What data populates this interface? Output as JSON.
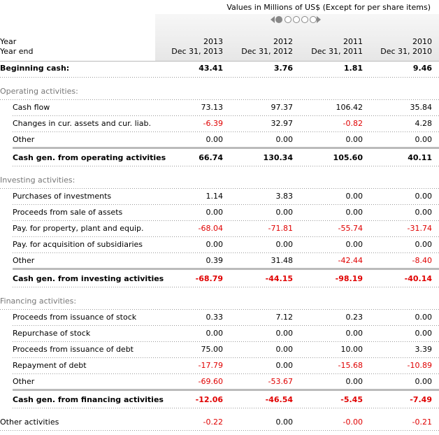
{
  "header": {
    "note": "Values in Millions of US$ (Except for per share items)",
    "label_1": "Year",
    "label_2": "Year end",
    "columns": [
      {
        "year": "2013",
        "date": "Dec 31, 2013"
      },
      {
        "year": "2012",
        "date": "Dec 31, 2012"
      },
      {
        "year": "2011",
        "date": "Dec 31, 2011"
      },
      {
        "year": "2010",
        "date": "Dec 31, 2010"
      }
    ]
  },
  "beginning_cash": {
    "label": "Beginning cash:",
    "values": [
      "43.41",
      "3.76",
      "1.81",
      "9.46"
    ]
  },
  "sections": [
    {
      "title": "Operating activities:",
      "rows": [
        {
          "label": "Cash flow",
          "values": [
            "73.13",
            "97.37",
            "106.42",
            "35.84"
          ]
        },
        {
          "label": "Changes in cur. assets and cur. liab.",
          "values": [
            "-6.39",
            "32.97",
            "-0.82",
            "4.28"
          ]
        },
        {
          "label": "Other",
          "values": [
            "0.00",
            "0.00",
            "0.00",
            "0.00"
          ]
        }
      ],
      "total": {
        "label": "Cash gen. from operating activities",
        "values": [
          "66.74",
          "130.34",
          "105.60",
          "40.11"
        ]
      }
    },
    {
      "title": "Investing activities:",
      "rows": [
        {
          "label": "Purchases of investments",
          "values": [
            "1.14",
            "3.83",
            "0.00",
            "0.00"
          ]
        },
        {
          "label": "Proceeds from sale of assets",
          "values": [
            "0.00",
            "0.00",
            "0.00",
            "0.00"
          ]
        },
        {
          "label": "Pay. for property, plant and equip.",
          "values": [
            "-68.04",
            "-71.81",
            "-55.74",
            "-31.74"
          ]
        },
        {
          "label": "Pay. for acquisition of subsidiaries",
          "values": [
            "0.00",
            "0.00",
            "0.00",
            "0.00"
          ]
        },
        {
          "label": "Other",
          "values": [
            "0.39",
            "31.48",
            "-42.44",
            "-8.40"
          ]
        }
      ],
      "total": {
        "label": "Cash gen. from investing activities",
        "values": [
          "-68.79",
          "-44.15",
          "-98.19",
          "-40.14"
        ]
      }
    },
    {
      "title": "Financing activities:",
      "rows": [
        {
          "label": "Proceeds from issuance of stock",
          "values": [
            "0.33",
            "7.12",
            "0.23",
            "0.00"
          ]
        },
        {
          "label": "Repurchase of stock",
          "values": [
            "0.00",
            "0.00",
            "0.00",
            "0.00"
          ]
        },
        {
          "label": "Proceeds from issuance of debt",
          "values": [
            "75.00",
            "0.00",
            "10.00",
            "3.39"
          ]
        },
        {
          "label": "Repayment of debt",
          "values": [
            "-17.79",
            "0.00",
            "-15.68",
            "-10.89"
          ]
        },
        {
          "label": "Other",
          "values": [
            "-69.60",
            "-53.67",
            "0.00",
            "0.00"
          ]
        }
      ],
      "total": {
        "label": "Cash gen. from financing activities",
        "values": [
          "-12.06",
          "-46.54",
          "-5.45",
          "-7.49"
        ]
      }
    }
  ],
  "other_activities": {
    "label": "Other activities",
    "values": [
      "-0.22",
      "0.00",
      "-0.00",
      "-0.21"
    ]
  }
}
